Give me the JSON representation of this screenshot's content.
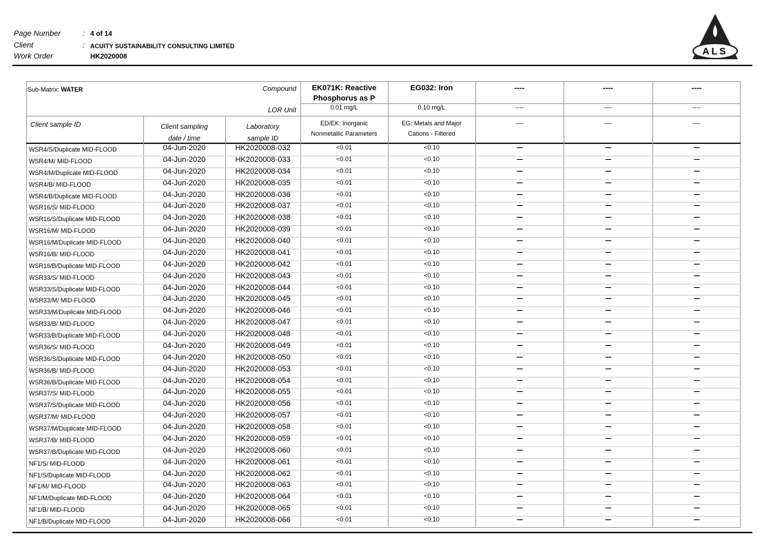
{
  "header": {
    "page_number_label": "Page Number",
    "page_number": "4 of 14",
    "client_label": "Client",
    "client": "ACUITY SUSTAINABILITY CONSULTING LIMITED",
    "work_order_label": "Work Order",
    "work_order": "HK2020008",
    "separator": ":",
    "logo": "ALS"
  },
  "table": {
    "sub_matrix_label": "Sub-Matrix:",
    "sub_matrix": "WATER",
    "compound_label": "Compound",
    "lor_label": "LOR Unit",
    "compounds": [
      "EK071K: Reactive Phosphorus as P",
      "EG032: Iron",
      "----",
      "----",
      "----"
    ],
    "lor_units": [
      "0.01 mg/L",
      "0.10 mg/L",
      "----",
      "----",
      "----"
    ],
    "columns": [
      "Client sample ID",
      "Client sampling date / time",
      "Laboratory sample ID"
    ],
    "methods": [
      "ED/EK: Inorganic Nonmetallic Parameters",
      "EG: Metals and Major Cations - Filtered",
      "----",
      "----",
      "----"
    ],
    "rows": [
      [
        "WSR4/S/Duplicate MID-FLOOD",
        "04-Jun-2020",
        "HK2020008-032",
        "<0.01",
        "<0.10",
        "----",
        "----",
        "----"
      ],
      [
        "WSR4/M/ MID-FLOOD",
        "04-Jun-2020",
        "HK2020008-033",
        "<0.01",
        "<0.10",
        "----",
        "----",
        "----"
      ],
      [
        "WSR4/M/Duplicate MID-FLOOD",
        "04-Jun-2020",
        "HK2020008-034",
        "<0.01",
        "<0.10",
        "----",
        "----",
        "----"
      ],
      [
        "WSR4/B/ MID-FLOOD",
        "04-Jun-2020",
        "HK2020008-035",
        "<0.01",
        "<0.10",
        "----",
        "----",
        "----"
      ],
      [
        "WSR4/B/Duplicate MID-FLOOD",
        "04-Jun-2020",
        "HK2020008-036",
        "<0.01",
        "<0.10",
        "----",
        "----",
        "----"
      ],
      [
        "WSR16/S/ MID-FLOOD",
        "04-Jun-2020",
        "HK2020008-037",
        "<0.01",
        "<0.10",
        "----",
        "----",
        "----"
      ],
      [
        "WSR16/S/Duplicate MID-FLOOD",
        "04-Jun-2020",
        "HK2020008-038",
        "<0.01",
        "<0.10",
        "----",
        "----",
        "----"
      ],
      [
        "WSR16/M/ MID-FLOOD",
        "04-Jun-2020",
        "HK2020008-039",
        "<0.01",
        "<0.10",
        "----",
        "----",
        "----"
      ],
      [
        "WSR16/M/Duplicate MID-FLOOD",
        "04-Jun-2020",
        "HK2020008-040",
        "<0.01",
        "<0.10",
        "----",
        "----",
        "----"
      ],
      [
        "WSR16/B/ MID-FLOOD",
        "04-Jun-2020",
        "HK2020008-041",
        "<0.01",
        "<0.10",
        "----",
        "----",
        "----"
      ],
      [
        "WSR16/B/Duplicate MID-FLOOD",
        "04-Jun-2020",
        "HK2020008-042",
        "<0.01",
        "<0.10",
        "----",
        "----",
        "----"
      ],
      [
        "WSR33/S/ MID-FLOOD",
        "04-Jun-2020",
        "HK2020008-043",
        "<0.01",
        "<0.10",
        "----",
        "----",
        "----"
      ],
      [
        "WSR33/S/Duplicate MID-FLOOD",
        "04-Jun-2020",
        "HK2020008-044",
        "<0.01",
        "<0.10",
        "----",
        "----",
        "----"
      ],
      [
        "WSR33/M/ MID-FLOOD",
        "04-Jun-2020",
        "HK2020008-045",
        "<0.01",
        "<0.10",
        "----",
        "----",
        "----"
      ],
      [
        "WSR33/M/Duplicate MID-FLOOD",
        "04-Jun-2020",
        "HK2020008-046",
        "<0.01",
        "<0.10",
        "----",
        "----",
        "----"
      ],
      [
        "WSR33/B/ MID-FLOOD",
        "04-Jun-2020",
        "HK2020008-047",
        "<0.01",
        "<0.10",
        "----",
        "----",
        "----"
      ],
      [
        "WSR33/B/Duplicate MID-FLOOD",
        "04-Jun-2020",
        "HK2020008-048",
        "<0.01",
        "<0.10",
        "----",
        "----",
        "----"
      ],
      [
        "WSR36/S/ MID-FLOOD",
        "04-Jun-2020",
        "HK2020008-049",
        "<0.01",
        "<0.10",
        "----",
        "----",
        "----"
      ],
      [
        "WSR36/S/Duplicate MID-FLOOD",
        "04-Jun-2020",
        "HK2020008-050",
        "<0.01",
        "<0.10",
        "----",
        "----",
        "----"
      ],
      [
        "WSR36/B/ MID-FLOOD",
        "04-Jun-2020",
        "HK2020008-053",
        "<0.01",
        "<0.10",
        "----",
        "----",
        "----"
      ],
      [
        "WSR36/B/Duplicate MID-FLOOD",
        "04-Jun-2020",
        "HK2020008-054",
        "<0.01",
        "<0.10",
        "----",
        "----",
        "----"
      ],
      [
        "WSR37/S/ MID-FLOOD",
        "04-Jun-2020",
        "HK2020008-055",
        "<0.01",
        "<0.10",
        "----",
        "----",
        "----"
      ],
      [
        "WSR37/S/Duplicate MID-FLOOD",
        "04-Jun-2020",
        "HK2020008-056",
        "<0.01",
        "<0.10",
        "----",
        "----",
        "----"
      ],
      [
        "WSR37/M/ MID-FLOOD",
        "04-Jun-2020",
        "HK2020008-057",
        "<0.01",
        "<0.10",
        "----",
        "----",
        "----"
      ],
      [
        "WSR37/M/Duplicate MID-FLOOD",
        "04-Jun-2020",
        "HK2020008-058",
        "<0.01",
        "<0.10",
        "----",
        "----",
        "----"
      ],
      [
        "WSR37/B/ MID-FLOOD",
        "04-Jun-2020",
        "HK2020008-059",
        "<0.01",
        "<0.10",
        "----",
        "----",
        "----"
      ],
      [
        "WSR37/B/Duplicate MID-FLOOD",
        "04-Jun-2020",
        "HK2020008-060",
        "<0.01",
        "<0.10",
        "----",
        "----",
        "----"
      ],
      [
        "NF1/S/ MID-FLOOD",
        "04-Jun-2020",
        "HK2020008-061",
        "<0.01",
        "<0.10",
        "----",
        "----",
        "----"
      ],
      [
        "NF1/S/Duplicate MID-FLOOD",
        "04-Jun-2020",
        "HK2020008-062",
        "<0.01",
        "<0.10",
        "----",
        "----",
        "----"
      ],
      [
        "NF1/M/ MID-FLOOD",
        "04-Jun-2020",
        "HK2020008-063",
        "<0.01",
        "<0.10",
        "----",
        "----",
        "----"
      ],
      [
        "NF1/M/Duplicate MID-FLOOD",
        "04-Jun-2020",
        "HK2020008-064",
        "<0.01",
        "<0.10",
        "----",
        "----",
        "----"
      ],
      [
        "NF1/B/ MID-FLOOD",
        "04-Jun-2020",
        "HK2020008-065",
        "<0.01",
        "<0.10",
        "----",
        "----",
        "----"
      ],
      [
        "NF1/B/Duplicate MID-FLOOD",
        "04-Jun-2020",
        "HK2020008-066",
        "<0.01",
        "<0.10",
        "----",
        "----",
        "----"
      ]
    ]
  }
}
